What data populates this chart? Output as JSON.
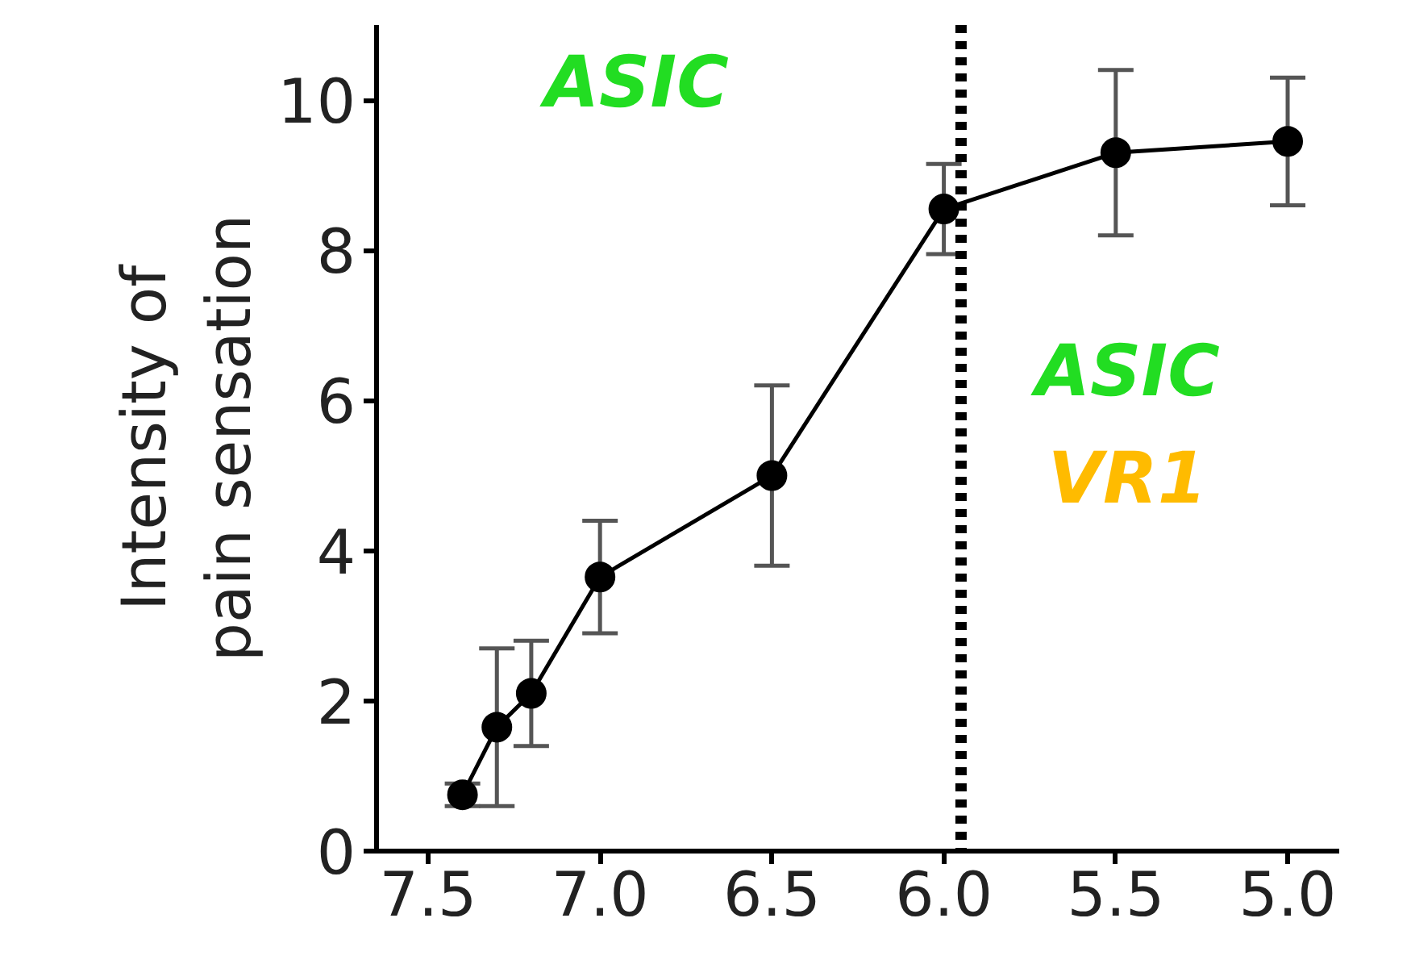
{
  "chart_data": {
    "type": "line",
    "ylabel": "Intensity of\npain sensation",
    "x": [
      7.4,
      7.3,
      7.2,
      7.0,
      6.5,
      6.0,
      5.5,
      5.0
    ],
    "series": [
      {
        "color": "#000000",
        "values": [
          0.75,
          1.65,
          2.1,
          3.65,
          5.0,
          8.55,
          9.3,
          9.45
        ],
        "errors": [
          0.15,
          1.05,
          0.7,
          0.75,
          1.2,
          0.6,
          1.1,
          0.85
        ]
      }
    ],
    "xlim": [
      7.65,
      4.85
    ],
    "xticks": [
      7.5,
      {
        "value": 7,
        "label": "7.0"
      },
      6.5,
      {
        "value": 6,
        "label": "6.0"
      },
      5.5,
      {
        "value": 5,
        "label": "5.0"
      }
    ],
    "ylim": [
      0,
      11
    ],
    "yticks": [
      0,
      2,
      4,
      6,
      8,
      10
    ],
    "ref_lines": [
      {
        "axis": "x",
        "value": 5.95,
        "color": "#000000",
        "line_style": "dotted"
      }
    ],
    "annotations": [
      "ASIC",
      "ASIC",
      "VR1"
    ],
    "marker": "circle",
    "line_style": "solid",
    "grid": false
  }
}
